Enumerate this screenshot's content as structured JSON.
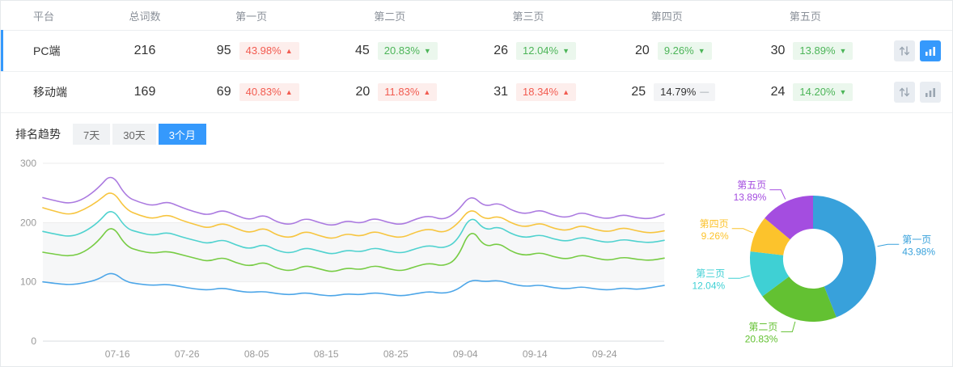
{
  "table": {
    "headers": {
      "platform": "平台",
      "total": "总词数",
      "pages": [
        "第一页",
        "第二页",
        "第三页",
        "第四页",
        "第五页"
      ]
    },
    "rows": [
      {
        "platform": "PC端",
        "total": "216",
        "active": "true",
        "chart_active": "true",
        "pages": [
          {
            "value": "95",
            "pct": "43.98%",
            "dir": "up"
          },
          {
            "value": "45",
            "pct": "20.83%",
            "dir": "down"
          },
          {
            "value": "26",
            "pct": "12.04%",
            "dir": "down"
          },
          {
            "value": "20",
            "pct": "9.26%",
            "dir": "down"
          },
          {
            "value": "30",
            "pct": "13.89%",
            "dir": "down"
          }
        ]
      },
      {
        "platform": "移动端",
        "total": "169",
        "active": "false",
        "chart_active": "false",
        "pages": [
          {
            "value": "69",
            "pct": "40.83%",
            "dir": "up"
          },
          {
            "value": "20",
            "pct": "11.83%",
            "dir": "up"
          },
          {
            "value": "31",
            "pct": "18.34%",
            "dir": "up"
          },
          {
            "value": "25",
            "pct": "14.79%",
            "dir": "flat"
          },
          {
            "value": "24",
            "pct": "14.20%",
            "dir": "down"
          }
        ]
      }
    ]
  },
  "trend": {
    "title": "排名趋势",
    "tabs": [
      {
        "label": "7天",
        "active": "false"
      },
      {
        "label": "30天",
        "active": "false"
      },
      {
        "label": "3个月",
        "active": "true"
      }
    ]
  },
  "colors": {
    "accent_blue": "#3599fc",
    "badge_up_red": "#f25b50",
    "badge_down_green": "#4cb558"
  },
  "chart_data": [
    {
      "type": "line",
      "title": "排名趋势 (3个月)",
      "ylim": [
        0,
        300
      ],
      "yticks": [
        0,
        100,
        200,
        300
      ],
      "x_ticks": [
        "07-16",
        "07-26",
        "08-05",
        "08-15",
        "08-25",
        "09-04",
        "09-14",
        "09-24"
      ],
      "grid": true,
      "legend": "none",
      "series": [
        {
          "name": "series-purple-page5",
          "color": "#ab7ae0",
          "values": [
            242,
            236,
            232,
            240,
            258,
            284,
            244,
            234,
            228,
            236,
            226,
            218,
            212,
            222,
            212,
            204,
            214,
            200,
            196,
            208,
            200,
            194,
            204,
            198,
            208,
            200,
            196,
            206,
            212,
            204,
            218,
            248,
            226,
            234,
            220,
            214,
            222,
            212,
            208,
            218,
            210,
            206,
            214,
            208,
            206,
            214
          ]
        },
        {
          "name": "series-yellow-page4",
          "color": "#f7c53f",
          "values": [
            225,
            218,
            213,
            222,
            236,
            256,
            222,
            212,
            206,
            214,
            204,
            197,
            190,
            200,
            190,
            182,
            192,
            178,
            174,
            186,
            178,
            172,
            182,
            176,
            186,
            178,
            174,
            184,
            190,
            182,
            196,
            226,
            204,
            212,
            198,
            192,
            200,
            190,
            186,
            196,
            188,
            184,
            192,
            186,
            182,
            186
          ]
        },
        {
          "name": "series-cyan-page3",
          "color": "#4fd2cf",
          "values": [
            185,
            180,
            176,
            184,
            200,
            226,
            190,
            183,
            178,
            184,
            176,
            170,
            164,
            172,
            162,
            155,
            164,
            152,
            148,
            158,
            152,
            146,
            154,
            150,
            158,
            152,
            148,
            156,
            162,
            156,
            168,
            214,
            186,
            194,
            180,
            174,
            180,
            172,
            168,
            176,
            170,
            166,
            172,
            168,
            166,
            170
          ]
        },
        {
          "name": "series-green-page2",
          "color": "#77cc44",
          "values": [
            150,
            146,
            143,
            150,
            168,
            198,
            160,
            152,
            148,
            152,
            146,
            140,
            134,
            142,
            132,
            126,
            134,
            122,
            118,
            128,
            122,
            116,
            124,
            120,
            128,
            122,
            118,
            126,
            132,
            126,
            138,
            192,
            158,
            166,
            150,
            144,
            150,
            142,
            138,
            146,
            140,
            136,
            142,
            138,
            136,
            140
          ]
        },
        {
          "name": "series-blue-page1",
          "color": "#4da6e8",
          "values": [
            100,
            97,
            95,
            98,
            104,
            118,
            100,
            96,
            94,
            96,
            92,
            88,
            86,
            90,
            85,
            82,
            84,
            80,
            78,
            82,
            78,
            76,
            80,
            78,
            82,
            79,
            76,
            80,
            84,
            80,
            86,
            104,
            100,
            103,
            96,
            92,
            95,
            90,
            88,
            92,
            88,
            86,
            90,
            87,
            90,
            94
          ]
        }
      ]
    },
    {
      "type": "pie",
      "donut": true,
      "labels": [
        "第一页",
        "第二页",
        "第三页",
        "第四页",
        "第五页"
      ],
      "values": [
        43.98,
        20.83,
        12.04,
        9.26,
        13.89
      ],
      "percent_labels": [
        "43.98%",
        "20.83%",
        "12.04%",
        "9.26%",
        "13.89%"
      ],
      "colors": [
        "#38a1db",
        "#63c132",
        "#3fd0d4",
        "#fcc32c",
        "#a44de0"
      ]
    }
  ]
}
